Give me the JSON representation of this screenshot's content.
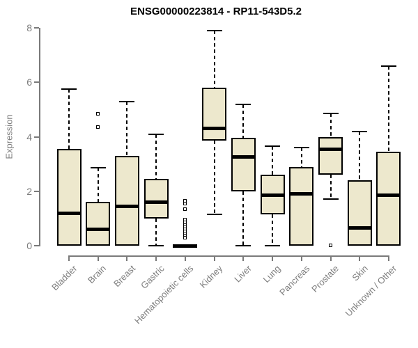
{
  "title": "ENSG00000223814 - RP11-543D5.2",
  "chart_data": {
    "type": "boxplot",
    "title": "ENSG00000223814 - RP11-543D5.2",
    "ylabel": "Expression",
    "xlabel": "",
    "ylim": [
      0,
      8
    ],
    "yticks": [
      0,
      2,
      4,
      6,
      8
    ],
    "grid": false,
    "legend": false,
    "categories": [
      "Bladder",
      "Brain",
      "Breast",
      "Gastric",
      "Hematopoietic cells",
      "Kidney",
      "Liver",
      "Lung",
      "Pancreas",
      "Prostate",
      "Skin",
      "Unknown / Other"
    ],
    "series": [
      {
        "name": "Bladder",
        "whisker_low": 0,
        "q1": 0,
        "median": 1.2,
        "q3": 3.55,
        "whisker_high": 5.75,
        "outliers": []
      },
      {
        "name": "Brain",
        "whisker_low": 0,
        "q1": 0,
        "median": 0.6,
        "q3": 1.6,
        "whisker_high": 2.85,
        "outliers": [
          4.85,
          4.35
        ]
      },
      {
        "name": "Breast",
        "whisker_low": 0,
        "q1": 0,
        "median": 1.45,
        "q3": 3.3,
        "whisker_high": 5.3,
        "outliers": []
      },
      {
        "name": "Gastric",
        "whisker_low": 0,
        "q1": 1.0,
        "median": 1.6,
        "q3": 2.45,
        "whisker_high": 4.1,
        "outliers": []
      },
      {
        "name": "Hematopoietic cells",
        "whisker_low": 0,
        "q1": 0,
        "median": 0,
        "q3": 0,
        "whisker_high": 0,
        "outliers": [
          1.65,
          1.55,
          1.35,
          0.95,
          0.85,
          0.75,
          0.68,
          0.6,
          0.52,
          0.45,
          0.38,
          0.3
        ]
      },
      {
        "name": "Kidney",
        "whisker_low": 1.15,
        "q1": 3.85,
        "median": 4.3,
        "q3": 5.8,
        "whisker_high": 7.9,
        "outliers": []
      },
      {
        "name": "Liver",
        "whisker_low": 0,
        "q1": 2.0,
        "median": 3.25,
        "q3": 3.95,
        "whisker_high": 5.2,
        "outliers": []
      },
      {
        "name": "Lung",
        "whisker_low": 0,
        "q1": 1.15,
        "median": 1.85,
        "q3": 2.6,
        "whisker_high": 3.65,
        "outliers": []
      },
      {
        "name": "Pancreas",
        "whisker_low": 0,
        "q1": 0,
        "median": 1.9,
        "q3": 2.9,
        "whisker_high": 3.6,
        "outliers": []
      },
      {
        "name": "Prostate",
        "whisker_low": 1.7,
        "q1": 2.6,
        "median": 3.55,
        "q3": 4.0,
        "whisker_high": 4.85,
        "outliers": [
          0.02
        ]
      },
      {
        "name": "Skin",
        "whisker_low": 0,
        "q1": 0,
        "median": 0.65,
        "q3": 2.4,
        "whisker_high": 4.2,
        "outliers": []
      },
      {
        "name": "Unknown / Other",
        "whisker_low": 0,
        "q1": 0,
        "median": 1.85,
        "q3": 3.45,
        "whisker_high": 6.6,
        "outliers": []
      }
    ],
    "colors": {
      "box_fill": "#EDE8CD",
      "box_border": "#000000",
      "median": "#000000",
      "axis": "#7A7A7A",
      "text": "#7D7D7D",
      "title": "#000000",
      "background": "#FFFFFF"
    }
  }
}
